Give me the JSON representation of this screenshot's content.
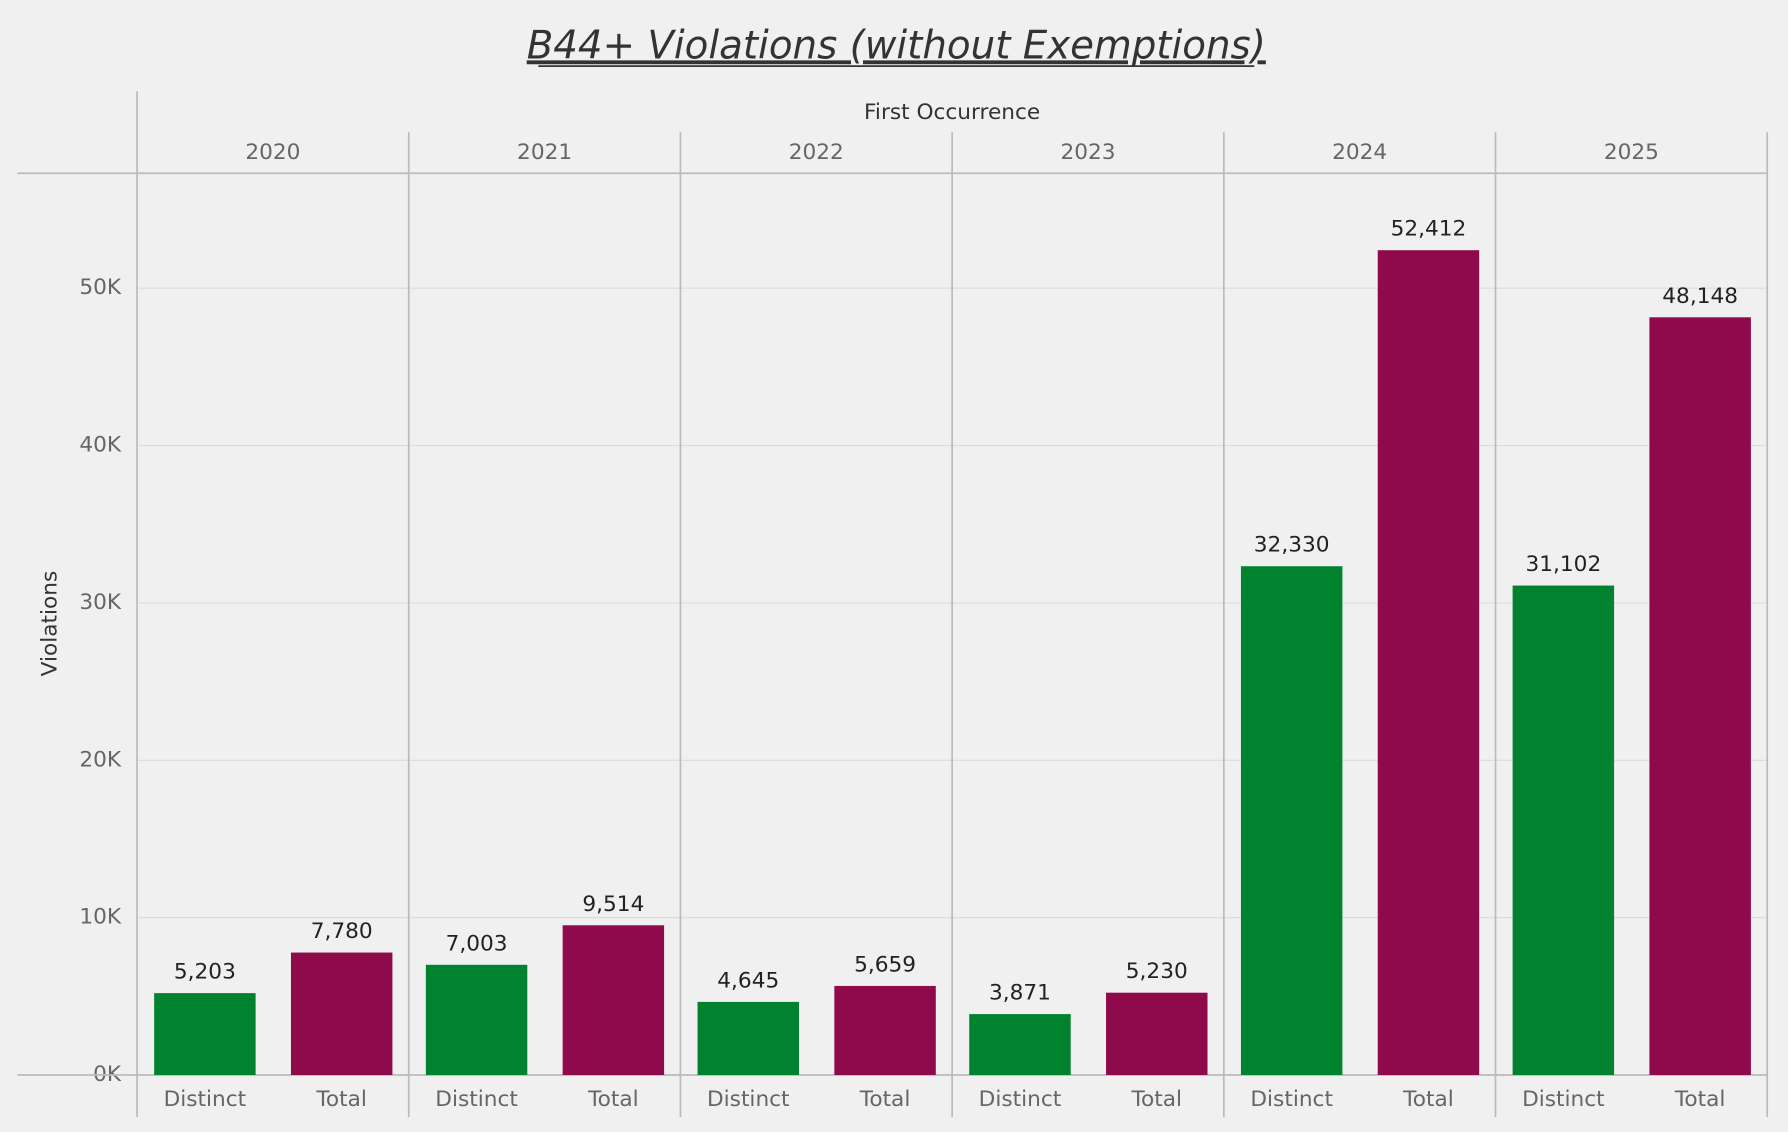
{
  "chart_data": {
    "type": "bar",
    "title": "B44+ Violations (without Exemptions)",
    "x_label": "First Occurrence",
    "y_label": "Violations",
    "categories": [
      "2020",
      "2021",
      "2022",
      "2023",
      "2024",
      "2025"
    ],
    "series": [
      {
        "name": "Distinct",
        "color": "#00822e",
        "values": [
          5203,
          7003,
          4645,
          3871,
          32330,
          31102
        ],
        "value_labels": [
          "5,203",
          "7,003",
          "4,645",
          "3,871",
          "32,330",
          "31,102"
        ]
      },
      {
        "name": "Total",
        "color": "#8f0a4a",
        "values": [
          7780,
          9514,
          5659,
          5230,
          52412,
          48148
        ],
        "value_labels": [
          "7,780",
          "9,514",
          "5,659",
          "5,230",
          "52,412",
          "48,148"
        ]
      }
    ],
    "ylim": [
      0,
      57300
    ],
    "yticks": [
      {
        "value": 0,
        "label": "0K"
      },
      {
        "value": 10000,
        "label": "10K"
      },
      {
        "value": 20000,
        "label": "20K"
      },
      {
        "value": 30000,
        "label": "30K"
      },
      {
        "value": 40000,
        "label": "40K"
      },
      {
        "value": 50000,
        "label": "50K"
      }
    ],
    "grid": true
  }
}
